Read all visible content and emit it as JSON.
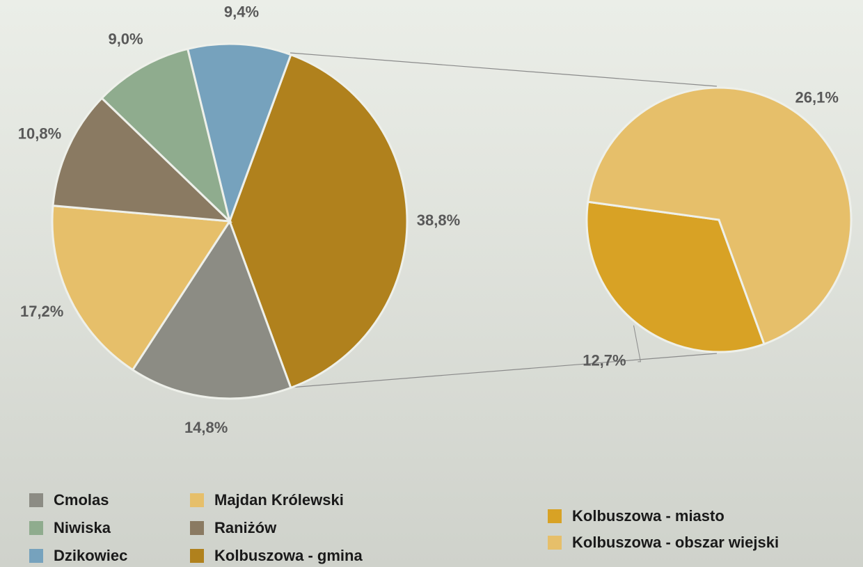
{
  "chart_data": [
    {
      "type": "pie",
      "categories": [
        "Kolbuszowa - gmina",
        "Cmolas",
        "Majdan Królewski",
        "Raniżów",
        "Niwiska",
        "Dzikowiec"
      ],
      "values": [
        38.8,
        14.8,
        17.2,
        10.8,
        9.0,
        9.4
      ],
      "value_labels": [
        "38,8%",
        "14,8%",
        "17,2%",
        "10,8%",
        "9,0%",
        "9,4%"
      ],
      "colors": [
        "#b0811d",
        "#8c8c84",
        "#e6bf6a",
        "#8a7a62",
        "#8fac8e",
        "#76a2bd"
      ]
    },
    {
      "type": "pie",
      "categories": [
        "Kolbuszowa - miasto",
        "Kolbuszowa - obszar wiejski"
      ],
      "values": [
        12.7,
        26.1
      ],
      "value_labels": [
        "12,7%",
        "26,1%"
      ],
      "colors": [
        "#d8a225",
        "#e6bf6a"
      ]
    }
  ]
}
